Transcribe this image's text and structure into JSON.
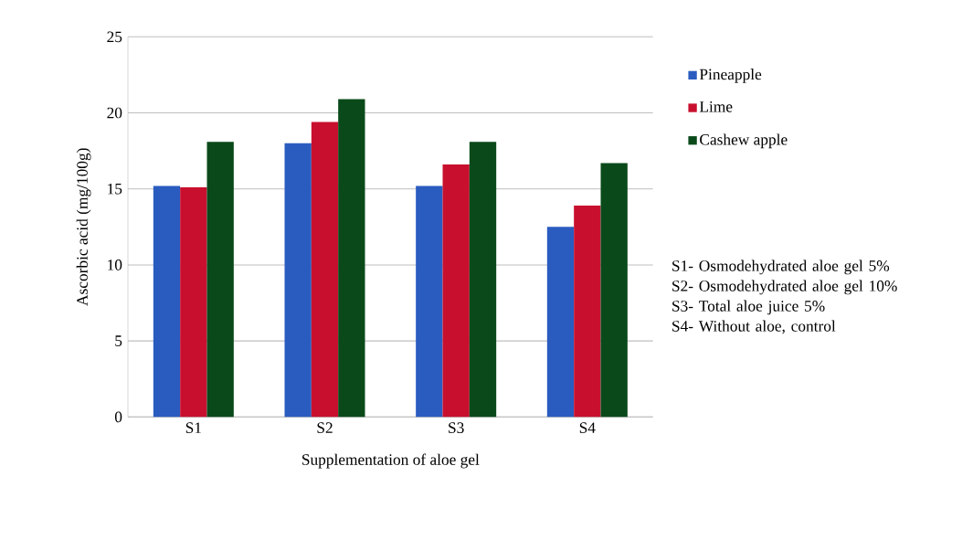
{
  "chart_data": {
    "type": "bar",
    "xlabel": "Supplementation of aloe gel",
    "ylabel": "Ascorbic acid (mg/100g)",
    "categories": [
      "S1",
      "S2",
      "S3",
      "S4"
    ],
    "series": [
      {
        "name": "Pineapple",
        "color": "#2a5cc0",
        "values": [
          15.2,
          18.0,
          15.2,
          12.5
        ]
      },
      {
        "name": "Lime",
        "color": "#c8102e",
        "values": [
          15.1,
          19.4,
          16.6,
          13.9
        ]
      },
      {
        "name": "Cashew apple",
        "color": "#0a4a1a",
        "values": [
          18.1,
          20.9,
          18.1,
          16.7
        ]
      }
    ],
    "ylim": [
      0,
      25
    ],
    "yticks": [
      0,
      5,
      10,
      15,
      20,
      25
    ],
    "grid": "y",
    "legend": "right",
    "annotations": [
      "S1- Osmodehydrated aloe gel 5%",
      "S2- Osmodehydrated aloe gel 10%",
      "S3- Total aloe juice 5%",
      "S4- Without aloe, control"
    ]
  }
}
